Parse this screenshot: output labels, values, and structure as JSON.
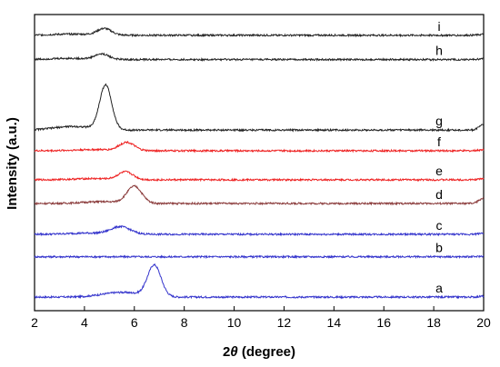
{
  "chart_data": {
    "type": "line",
    "xlabel": "2θ (degree)",
    "xlabel_prefix": "2",
    "xlabel_symbol": "θ",
    "xlabel_suffix": " (degree)",
    "ylabel": "Intensity (a.u.)",
    "xlim": [
      2,
      20
    ],
    "x_ticks": [
      "2",
      "4",
      "6",
      "8",
      "10",
      "12",
      "14",
      "16",
      "18",
      "20"
    ],
    "y_ticks": [],
    "grid": false,
    "legend": "none",
    "series": [
      {
        "name": "a",
        "color": "#3333cc",
        "base": 0.046,
        "peak": 6.8,
        "amp": 0.105,
        "width": 0.38,
        "shoulder": 0.016,
        "tail": 0.003
      },
      {
        "name": "b",
        "color": "#3333cc",
        "base": 0.182,
        "peak": 5.5,
        "amp": 0.0,
        "width": 0.5,
        "shoulder": 0.0,
        "tail": 0.002
      },
      {
        "name": "c",
        "color": "#3333cc",
        "base": 0.258,
        "peak": 5.45,
        "amp": 0.025,
        "width": 0.55,
        "shoulder": 0.004,
        "tail": 0.004
      },
      {
        "name": "d",
        "color": "#8a3a3a",
        "base": 0.362,
        "peak": 6.0,
        "amp": 0.057,
        "width": 0.42,
        "shoulder": 0.006,
        "tail": 0.018
      },
      {
        "name": "e",
        "color": "#ee2222",
        "base": 0.442,
        "peak": 5.65,
        "amp": 0.026,
        "width": 0.42,
        "shoulder": 0.004,
        "tail": 0.004
      },
      {
        "name": "f",
        "color": "#ee2222",
        "base": 0.54,
        "peak": 5.7,
        "amp": 0.028,
        "width": 0.42,
        "shoulder": 0.004,
        "tail": 0.004
      },
      {
        "name": "g",
        "color": "#222222",
        "base": 0.61,
        "peak": 4.85,
        "amp": 0.15,
        "width": 0.34,
        "shoulder": 0.012,
        "tail": 0.018
      },
      {
        "name": "h",
        "color": "#222222",
        "base": 0.848,
        "peak": 4.7,
        "amp": 0.018,
        "width": 0.4,
        "shoulder": 0.004,
        "tail": 0.003
      },
      {
        "name": "i",
        "color": "#222222",
        "base": 0.93,
        "peak": 4.8,
        "amp": 0.022,
        "width": 0.4,
        "shoulder": 0.004,
        "tail": 0.003
      }
    ]
  }
}
